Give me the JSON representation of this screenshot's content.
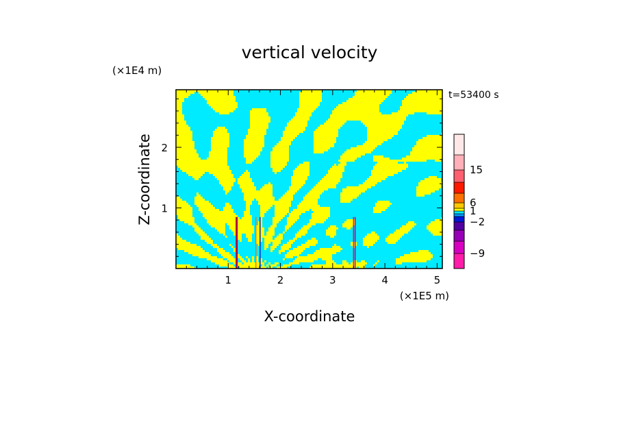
{
  "chart_data": {
    "type": "heatmap",
    "title": "vertical velocity",
    "xlabel": "X-coordinate",
    "ylabel": "Z-coordinate",
    "x_unit": "(×1E5 m)",
    "y_unit": "(×1E4 m)",
    "time_label": "t=53400 s",
    "xlim": [
      0,
      5.1
    ],
    "ylim": [
      0,
      2.95
    ],
    "x_ticks": [
      1,
      2,
      3,
      4,
      5
    ],
    "y_ticks": [
      1,
      2
    ],
    "field_colors": {
      "negative": "#00ebff",
      "positive": "#ffff00"
    },
    "colorbar": {
      "levels": [
        -12,
        -9,
        -6,
        -3,
        -2,
        -1,
        0,
        1,
        3,
        6,
        9,
        12,
        15,
        18,
        24
      ],
      "colors": [
        "#ff1ca8",
        "#d800c0",
        "#9800b8",
        "#5000a0",
        "#0018d8",
        "#0098ff",
        "#00ebff",
        "#ffff00",
        "#ffc800",
        "#ff7000",
        "#ff1800",
        "#ff6070",
        "#ffb0b8",
        "#ffe8e8"
      ],
      "tick_labels": [
        {
          "value": 15,
          "label": "15"
        },
        {
          "value": 6,
          "label": "6"
        },
        {
          "value": 1,
          "label": "1"
        },
        {
          "value": -2,
          "label": "−2"
        },
        {
          "value": -9,
          "label": "−9"
        }
      ]
    }
  }
}
